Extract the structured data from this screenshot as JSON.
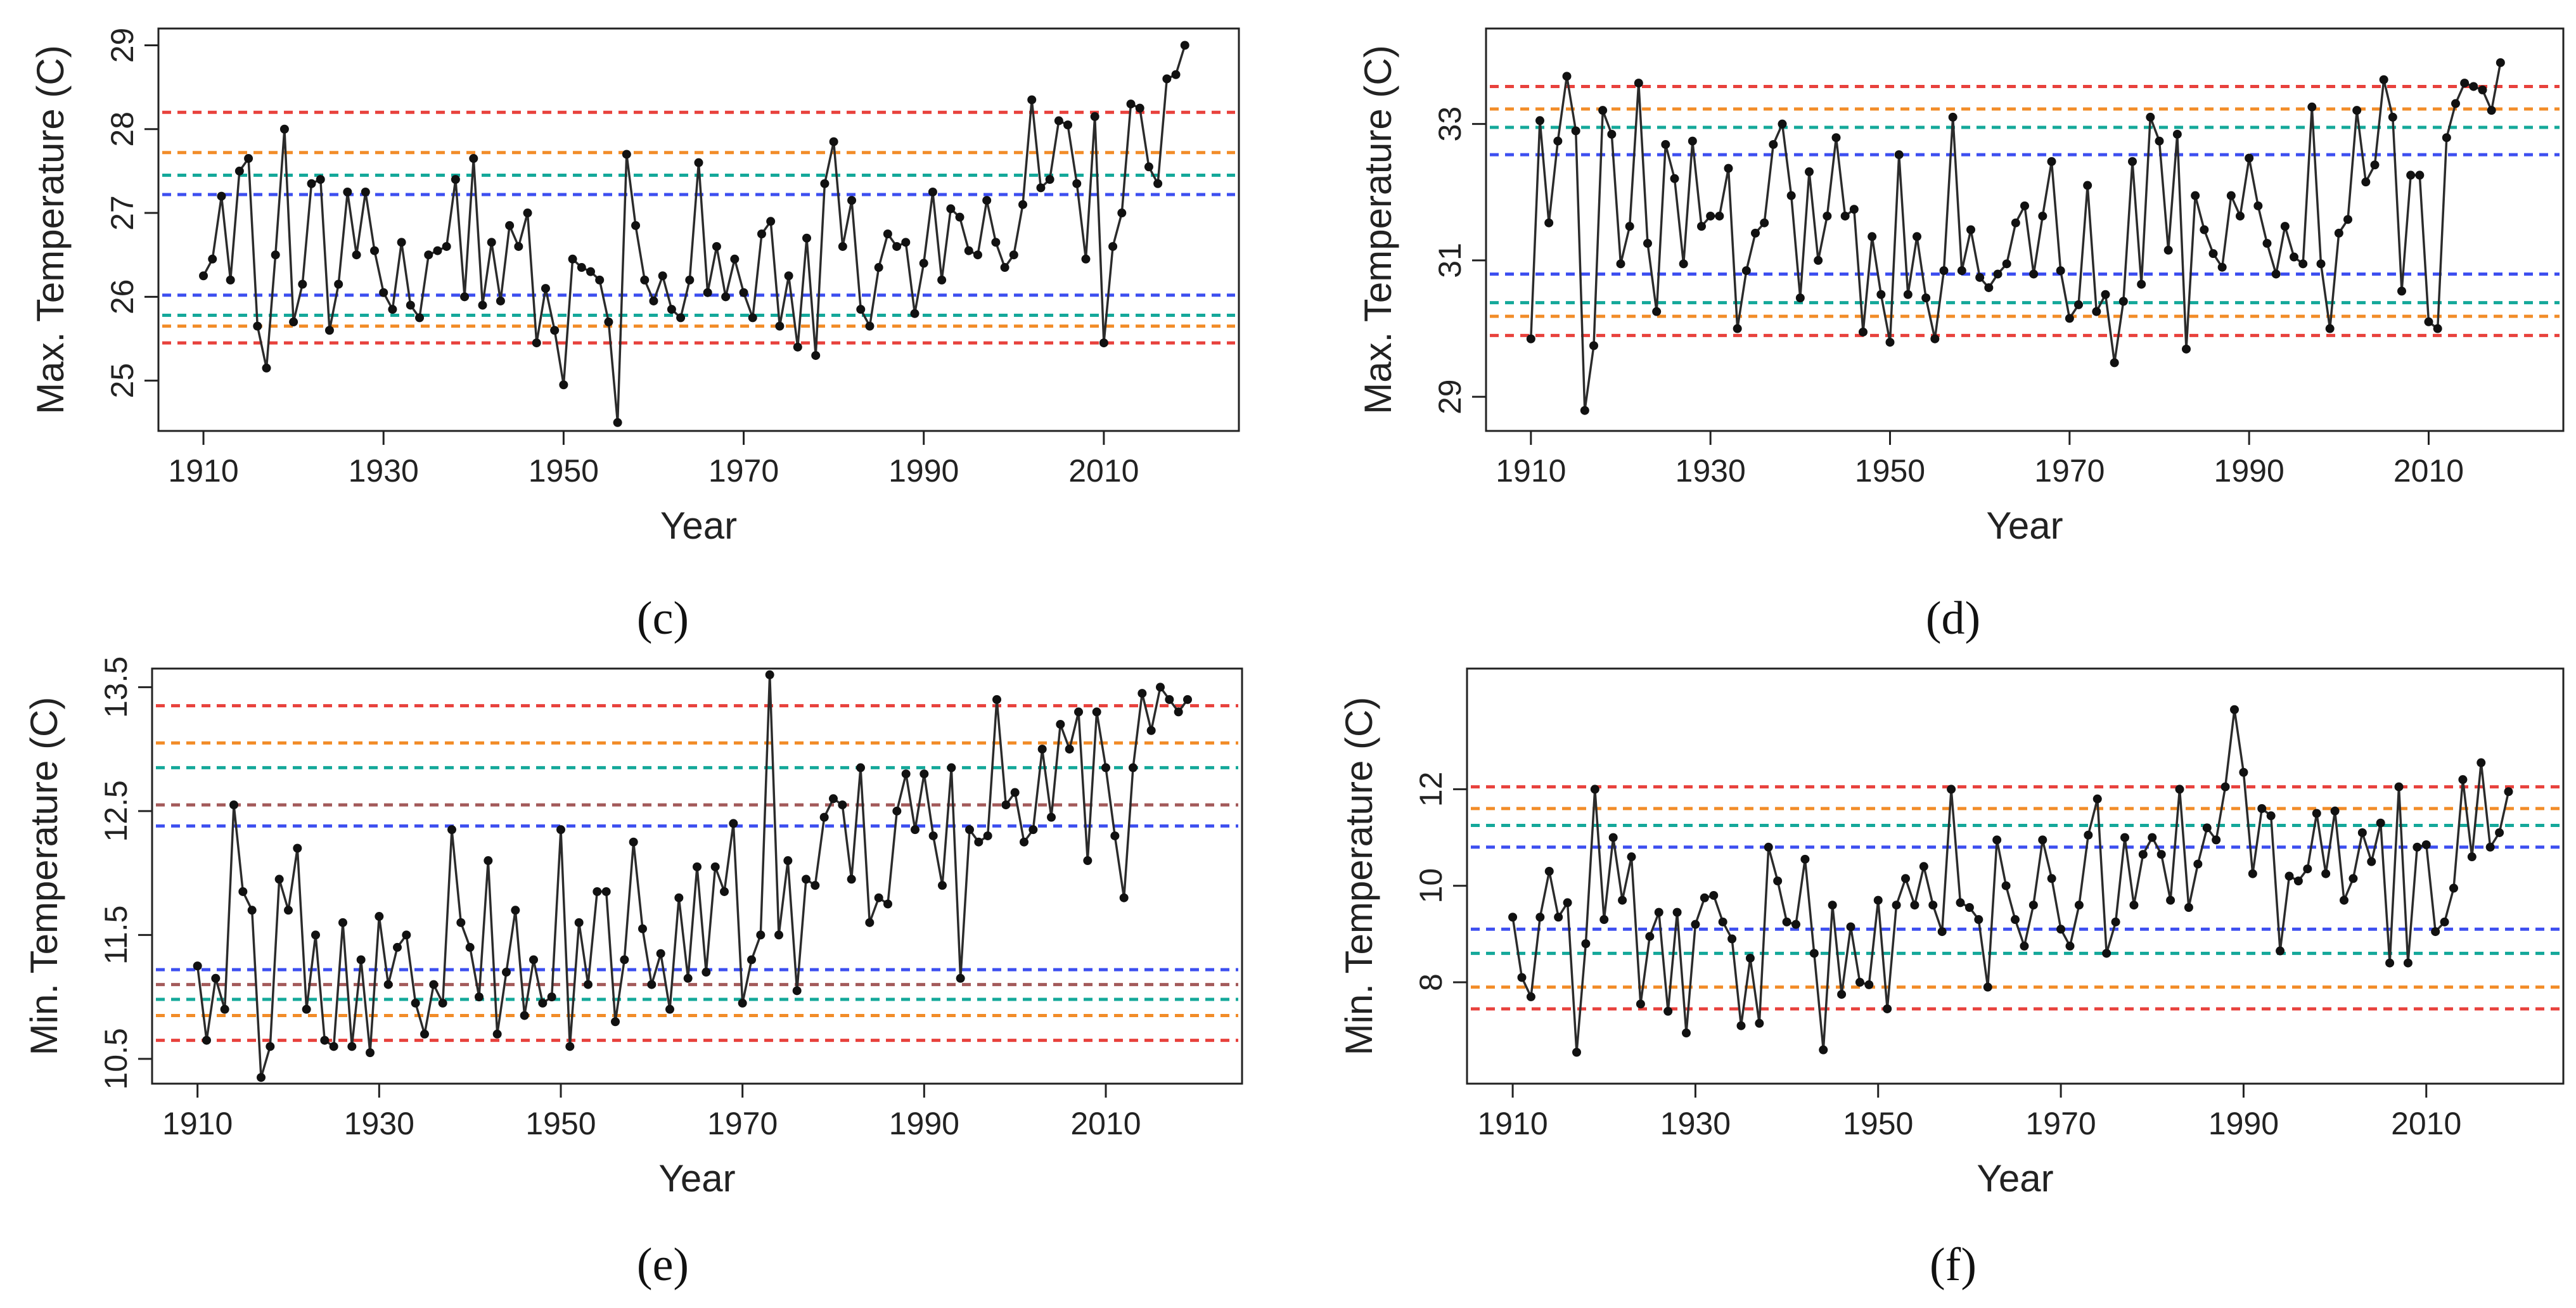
{
  "chart_data": [
    {
      "panel": "c",
      "type": "line",
      "xlabel": "Year",
      "ylabel": "Max. Temperature (C)",
      "xlim": [
        1905,
        2025
      ],
      "ylim": [
        24.4,
        29.2
      ],
      "xticks": [
        1910,
        1930,
        1950,
        1970,
        1990,
        2010
      ],
      "yticks": [
        25,
        26,
        27,
        28,
        29
      ],
      "x_start": 1910,
      "values": [
        26.25,
        26.45,
        27.2,
        26.2,
        27.5,
        27.65,
        25.65,
        25.15,
        26.5,
        28.0,
        25.7,
        26.15,
        27.35,
        27.4,
        25.6,
        26.15,
        27.25,
        26.5,
        27.25,
        26.55,
        26.05,
        25.85,
        26.65,
        25.9,
        25.75,
        26.5,
        26.55,
        26.6,
        27.4,
        26.0,
        27.65,
        25.9,
        26.65,
        25.95,
        26.85,
        26.6,
        27.0,
        25.45,
        26.1,
        25.6,
        24.95,
        26.45,
        26.35,
        26.3,
        26.2,
        25.7,
        24.5,
        27.7,
        26.85,
        26.2,
        25.95,
        26.25,
        25.85,
        25.75,
        26.2,
        27.6,
        26.05,
        26.6,
        26.0,
        26.45,
        26.05,
        25.75,
        26.75,
        26.9,
        25.65,
        26.25,
        25.4,
        26.7,
        25.3,
        27.35,
        27.85,
        26.6,
        27.15,
        25.85,
        25.65,
        26.35,
        26.75,
        26.6,
        26.65,
        25.8,
        26.4,
        27.25,
        26.2,
        27.05,
        26.95,
        26.55,
        26.5,
        27.15,
        26.65,
        26.35,
        26.5,
        27.1,
        28.35,
        27.3,
        27.4,
        28.1,
        28.05,
        27.35,
        26.45,
        28.15,
        25.45,
        26.6,
        27.0,
        28.3,
        28.25,
        27.55,
        27.35,
        28.6,
        28.65,
        29.0
      ],
      "reference_lines": [
        {
          "color": "#e8413c",
          "values": [
            28.2,
            25.45
          ]
        },
        {
          "color": "#f28c28",
          "values": [
            27.72,
            25.65
          ]
        },
        {
          "color": "#14a89a",
          "values": [
            27.45,
            25.78
          ]
        },
        {
          "color": "#3d4ff0",
          "values": [
            27.22,
            26.02
          ]
        }
      ]
    },
    {
      "panel": "d",
      "type": "line",
      "xlabel": "Year",
      "ylabel": "Max. Temperature (C)",
      "xlim": [
        1905,
        2025
      ],
      "ylim": [
        28.5,
        34.4
      ],
      "xticks": [
        1910,
        1930,
        1950,
        1970,
        1990,
        2010
      ],
      "yticks": [
        29,
        31,
        33
      ],
      "x_start": 1910,
      "values": [
        29.85,
        33.05,
        31.55,
        32.75,
        33.7,
        32.9,
        28.8,
        29.75,
        33.2,
        32.85,
        30.95,
        31.5,
        33.6,
        31.25,
        30.25,
        32.7,
        32.2,
        30.95,
        32.75,
        31.5,
        31.65,
        31.65,
        32.35,
        30.0,
        30.85,
        31.4,
        31.55,
        32.7,
        33.0,
        31.95,
        30.45,
        32.3,
        31.0,
        31.65,
        32.8,
        31.65,
        31.75,
        29.95,
        31.35,
        30.5,
        29.8,
        32.55,
        30.5,
        31.35,
        30.45,
        29.85,
        30.85,
        33.1,
        30.85,
        31.45,
        30.75,
        30.6,
        30.8,
        30.95,
        31.55,
        31.8,
        30.8,
        31.65,
        32.45,
        30.85,
        30.15,
        30.35,
        32.1,
        30.25,
        30.5,
        29.5,
        30.4,
        32.45,
        30.65,
        33.1,
        32.75,
        31.15,
        32.85,
        29.7,
        31.95,
        31.45,
        31.1,
        30.9,
        31.95,
        31.65,
        32.5,
        31.8,
        31.25,
        30.8,
        31.5,
        31.05,
        30.95,
        33.25,
        30.95,
        30.0,
        31.4,
        31.6,
        33.2,
        32.15,
        32.4,
        33.65,
        33.1,
        30.55,
        32.25,
        32.25,
        30.1,
        30.0,
        32.8,
        33.3,
        33.6,
        33.55,
        33.5,
        33.2,
        33.9
      ],
      "reference_lines": [
        {
          "color": "#e8413c",
          "values": [
            33.55,
            29.9
          ]
        },
        {
          "color": "#f28c28",
          "values": [
            33.22,
            30.18
          ]
        },
        {
          "color": "#14a89a",
          "values": [
            32.95,
            30.38
          ]
        },
        {
          "color": "#3d4ff0",
          "values": [
            32.55,
            30.8
          ]
        }
      ]
    },
    {
      "panel": "e",
      "type": "line",
      "xlabel": "Year",
      "ylabel": "Min. Temperature (C)",
      "xlim": [
        1905,
        2025
      ],
      "ylim": [
        10.3,
        13.65
      ],
      "xticks": [
        1910,
        1930,
        1950,
        1970,
        1990,
        2010
      ],
      "yticks": [
        10.5,
        11.5,
        12.5,
        13.5
      ],
      "ytick_labels": [
        "10.5",
        "11.5",
        "12.5",
        "13.5"
      ],
      "x_start": 1910,
      "values": [
        11.25,
        10.65,
        11.15,
        10.9,
        12.55,
        11.85,
        11.7,
        10.35,
        10.6,
        11.95,
        11.7,
        12.2,
        10.9,
        11.5,
        10.65,
        10.6,
        11.6,
        10.6,
        11.3,
        10.55,
        11.65,
        11.1,
        11.4,
        11.5,
        10.95,
        10.7,
        11.1,
        10.95,
        12.35,
        11.6,
        11.4,
        11.0,
        12.1,
        10.7,
        11.2,
        11.7,
        10.85,
        11.3,
        10.95,
        11.0,
        12.35,
        10.6,
        11.6,
        11.1,
        11.85,
        11.85,
        10.8,
        11.3,
        12.25,
        11.55,
        11.1,
        11.35,
        10.9,
        11.8,
        11.15,
        12.05,
        11.2,
        12.05,
        11.85,
        12.4,
        10.95,
        11.3,
        11.5,
        13.6,
        11.5,
        12.1,
        11.05,
        11.95,
        11.9,
        12.45,
        12.6,
        12.55,
        11.95,
        12.85,
        11.6,
        11.8,
        11.75,
        12.5,
        12.8,
        12.35,
        12.8,
        12.3,
        11.9,
        12.85,
        11.15,
        12.35,
        12.25,
        12.3,
        13.4,
        12.55,
        12.65,
        12.25,
        12.35,
        13.0,
        12.45,
        13.2,
        13.0,
        13.3,
        12.1,
        13.3,
        12.85,
        12.3,
        11.8,
        12.85,
        13.45,
        13.15,
        13.5,
        13.4,
        13.3,
        13.4
      ],
      "reference_lines": [
        {
          "color": "#e8413c",
          "values": [
            13.35,
            10.65
          ]
        },
        {
          "color": "#f28c28",
          "values": [
            13.05,
            10.85
          ]
        },
        {
          "color": "#14a89a",
          "values": [
            12.85,
            10.98
          ]
        },
        {
          "color": "#a35a5a",
          "values": [
            12.55,
            11.1
          ]
        },
        {
          "color": "#3d4ff0",
          "values": [
            12.38,
            11.22
          ]
        }
      ]
    },
    {
      "panel": "f",
      "type": "line",
      "xlabel": "Year",
      "ylabel": "Min. Temperature (C)",
      "xlim": [
        1905,
        2025
      ],
      "ylim": [
        5.9,
        14.5
      ],
      "xticks": [
        1910,
        1930,
        1950,
        1970,
        1990,
        2010
      ],
      "yticks": [
        8,
        10,
        12
      ],
      "x_start": 1910,
      "values": [
        9.35,
        8.1,
        7.7,
        9.35,
        10.3,
        9.35,
        9.65,
        6.55,
        8.8,
        12.0,
        9.3,
        11.0,
        9.7,
        10.6,
        7.55,
        8.95,
        9.45,
        7.4,
        9.45,
        6.95,
        9.2,
        9.75,
        9.8,
        9.25,
        8.9,
        7.1,
        8.5,
        7.15,
        10.8,
        10.1,
        9.25,
        9.2,
        10.55,
        8.6,
        6.6,
        9.6,
        7.75,
        9.15,
        8.0,
        7.95,
        9.7,
        7.45,
        9.6,
        10.15,
        9.6,
        10.4,
        9.6,
        9.05,
        12.0,
        9.65,
        9.55,
        9.3,
        7.9,
        10.95,
        10.0,
        9.3,
        8.75,
        9.6,
        10.95,
        10.15,
        9.1,
        8.75,
        9.6,
        11.05,
        11.8,
        8.6,
        9.25,
        11.0,
        9.6,
        10.65,
        11.0,
        10.65,
        9.7,
        12.0,
        9.55,
        10.45,
        11.2,
        10.95,
        12.05,
        13.65,
        12.35,
        10.25,
        11.6,
        11.45,
        8.65,
        10.2,
        10.1,
        10.35,
        11.5,
        10.25,
        11.55,
        9.7,
        10.15,
        11.1,
        10.5,
        11.3,
        8.4,
        12.05,
        8.4,
        10.8,
        10.85,
        9.05,
        9.25,
        9.95,
        12.2,
        10.6,
        12.55,
        10.8,
        11.1,
        11.95
      ],
      "reference_lines": [
        {
          "color": "#e8413c",
          "values": [
            12.05,
            7.45
          ]
        },
        {
          "color": "#f28c28",
          "values": [
            11.6,
            7.9
          ]
        },
        {
          "color": "#14a89a",
          "values": [
            11.25,
            8.6
          ]
        },
        {
          "color": "#3d4ff0",
          "values": [
            10.8,
            9.1
          ]
        }
      ]
    }
  ],
  "panel_labels": [
    "(c)",
    "(d)",
    "(e)",
    "(f)"
  ],
  "colors": {
    "series": "#2b2b2b",
    "axis": "#222222"
  }
}
